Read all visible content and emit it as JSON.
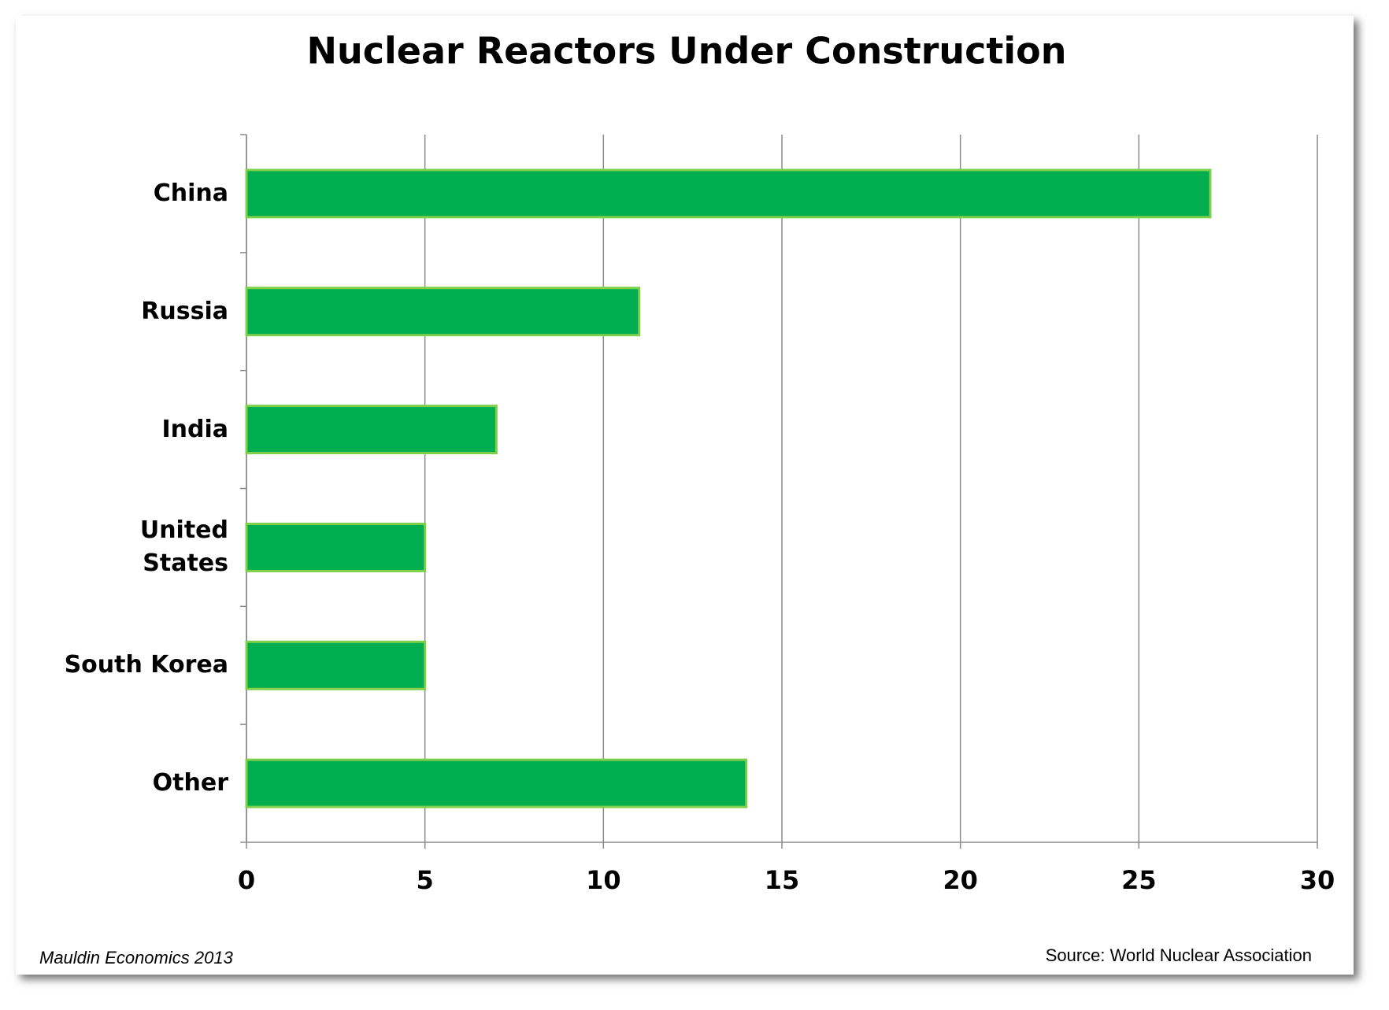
{
  "chart_data": {
    "type": "hbar",
    "title": "Nuclear Reactors Under Construction",
    "categories": [
      "China",
      "Russia",
      "India",
      "United States",
      "South Korea",
      "Other"
    ],
    "values": [
      27,
      11,
      7,
      5,
      5,
      14
    ],
    "color": "#00ad4f",
    "edge_color": "#7ed04a",
    "xlim": [
      0,
      30
    ],
    "xticks": [
      0,
      5,
      10,
      15,
      20,
      25,
      30
    ],
    "grid": true,
    "footnote": "Mauldin Economics 2013",
    "source": "Source: World Nuclear Association"
  }
}
